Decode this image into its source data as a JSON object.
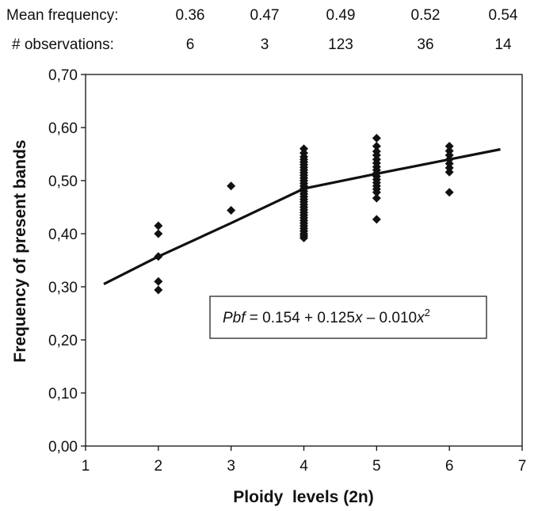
{
  "header": {
    "mean_label": "Mean frequency:",
    "mean_values": [
      "0.36",
      "0.47",
      "0.49",
      "0.52",
      "0.54"
    ],
    "obs_label": "# observations:",
    "obs_values": [
      "6",
      "3",
      "123",
      "36",
      "14"
    ]
  },
  "chart_data": {
    "type": "scatter",
    "xlabel": "Ploidy  levels (2n)",
    "ylabel": "Frequency of present bands",
    "xlim": [
      1,
      7
    ],
    "ylim": [
      0.0,
      0.7
    ],
    "x_ticks": [
      "1",
      "2",
      "3",
      "4",
      "5",
      "6",
      "7"
    ],
    "y_ticks": [
      "0,00",
      "0,10",
      "0,20",
      "0,30",
      "0,40",
      "0,50",
      "0,60",
      "0,70"
    ],
    "grid": false,
    "marker_color": "#111111",
    "series": [
      {
        "points": [
          [
            2,
            0.415
          ],
          [
            2,
            0.4
          ],
          [
            2,
            0.357
          ],
          [
            2,
            0.31
          ],
          [
            2,
            0.294
          ],
          [
            3,
            0.49
          ],
          [
            3,
            0.444
          ],
          [
            4,
            0.56
          ],
          [
            4,
            0.552
          ],
          [
            4,
            0.545
          ],
          [
            4,
            0.54
          ],
          [
            4,
            0.535
          ],
          [
            4,
            0.53
          ],
          [
            4,
            0.525
          ],
          [
            4,
            0.52
          ],
          [
            4,
            0.515
          ],
          [
            4,
            0.51
          ],
          [
            4,
            0.505
          ],
          [
            4,
            0.5
          ],
          [
            4,
            0.495
          ],
          [
            4,
            0.49
          ],
          [
            4,
            0.485
          ],
          [
            4,
            0.48
          ],
          [
            4,
            0.475
          ],
          [
            4,
            0.47
          ],
          [
            4,
            0.465
          ],
          [
            4,
            0.46
          ],
          [
            4,
            0.455
          ],
          [
            4,
            0.45
          ],
          [
            4,
            0.445
          ],
          [
            4,
            0.44
          ],
          [
            4,
            0.435
          ],
          [
            4,
            0.43
          ],
          [
            4,
            0.425
          ],
          [
            4,
            0.42
          ],
          [
            4,
            0.415
          ],
          [
            4,
            0.41
          ],
          [
            4,
            0.405
          ],
          [
            4,
            0.4
          ],
          [
            4,
            0.396
          ],
          [
            4,
            0.392
          ],
          [
            5,
            0.58
          ],
          [
            5,
            0.565
          ],
          [
            5,
            0.555
          ],
          [
            5,
            0.548
          ],
          [
            5,
            0.54
          ],
          [
            5,
            0.533
          ],
          [
            5,
            0.526
          ],
          [
            5,
            0.52
          ],
          [
            5,
            0.514
          ],
          [
            5,
            0.508
          ],
          [
            5,
            0.502
          ],
          [
            5,
            0.496
          ],
          [
            5,
            0.49
          ],
          [
            5,
            0.484
          ],
          [
            5,
            0.478
          ],
          [
            5,
            0.467
          ],
          [
            5,
            0.427
          ],
          [
            6,
            0.565
          ],
          [
            6,
            0.556
          ],
          [
            6,
            0.548
          ],
          [
            6,
            0.54
          ],
          [
            6,
            0.532
          ],
          [
            6,
            0.524
          ],
          [
            6,
            0.516
          ],
          [
            6,
            0.478
          ]
        ]
      }
    ],
    "trendline": {
      "points": [
        [
          1.25,
          0.305
        ],
        [
          2,
          0.357
        ],
        [
          3,
          0.42
        ],
        [
          4,
          0.485
        ],
        [
          5,
          0.513
        ],
        [
          6,
          0.54
        ],
        [
          6.7,
          0.559
        ]
      ]
    },
    "annotation": {
      "parts": [
        {
          "text": "Pbf",
          "style": "italic"
        },
        {
          "text": " = 0.154 + 0.125",
          "style": "normal"
        },
        {
          "text": "x",
          "style": "italic"
        },
        {
          "text": " – 0.010",
          "style": "normal"
        },
        {
          "text": "x",
          "style": "italic"
        },
        {
          "text": "2",
          "style": "sup"
        }
      ]
    }
  }
}
